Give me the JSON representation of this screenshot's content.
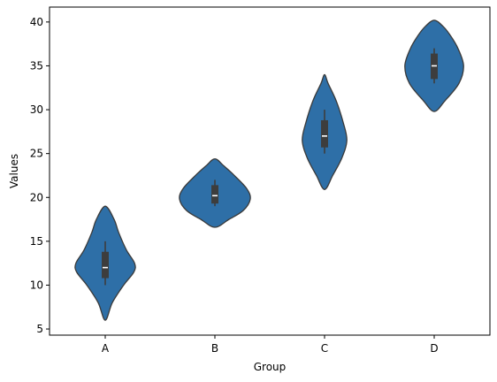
{
  "chart_data": {
    "type": "violin",
    "title": "",
    "xlabel": "Group",
    "ylabel": "Values",
    "categories": [
      "A",
      "B",
      "C",
      "D"
    ],
    "ylim": [
      4.3,
      41.7
    ],
    "yticks": [
      5,
      10,
      15,
      20,
      25,
      30,
      35,
      40
    ],
    "grid": false,
    "color": "#2e6fa7",
    "edge_color": "#3a3a3a",
    "groups": [
      {
        "name": "A",
        "median": 12.0,
        "q1": 10.8,
        "q3": 13.8,
        "whisker_low": 10.0,
        "whisker_high": 15.0,
        "density": [
          {
            "y": 6.0,
            "w": 0.0
          },
          {
            "y": 8.0,
            "w": 0.2
          },
          {
            "y": 10.0,
            "w": 0.52
          },
          {
            "y": 11.5,
            "w": 0.81
          },
          {
            "y": 12.5,
            "w": 0.83
          },
          {
            "y": 14.0,
            "w": 0.6
          },
          {
            "y": 16.0,
            "w": 0.38
          },
          {
            "y": 17.5,
            "w": 0.25
          },
          {
            "y": 19.0,
            "w": 0.0
          }
        ]
      },
      {
        "name": "B",
        "median": 20.2,
        "q1": 19.3,
        "q3": 21.4,
        "whisker_low": 19.0,
        "whisker_high": 22.0,
        "density": [
          {
            "y": 16.6,
            "w": 0.0
          },
          {
            "y": 17.5,
            "w": 0.4
          },
          {
            "y": 18.5,
            "w": 0.8
          },
          {
            "y": 19.8,
            "w": 1.0
          },
          {
            "y": 21.0,
            "w": 0.9
          },
          {
            "y": 22.5,
            "w": 0.55
          },
          {
            "y": 23.6,
            "w": 0.25
          },
          {
            "y": 24.4,
            "w": 0.0
          }
        ]
      },
      {
        "name": "C",
        "median": 27.0,
        "q1": 25.7,
        "q3": 28.8,
        "whisker_low": 25.0,
        "whisker_high": 30.0,
        "density": [
          {
            "y": 20.9,
            "w": 0.0
          },
          {
            "y": 22.5,
            "w": 0.23
          },
          {
            "y": 24.5,
            "w": 0.49
          },
          {
            "y": 26.5,
            "w": 0.63
          },
          {
            "y": 28.5,
            "w": 0.53
          },
          {
            "y": 31.0,
            "w": 0.33
          },
          {
            "y": 33.0,
            "w": 0.1
          },
          {
            "y": 34.0,
            "w": 0.0
          }
        ]
      },
      {
        "name": "D",
        "median": 35.0,
        "q1": 33.5,
        "q3": 36.4,
        "whisker_low": 33.0,
        "whisker_high": 37.0,
        "density": [
          {
            "y": 29.8,
            "w": 0.0
          },
          {
            "y": 31.0,
            "w": 0.3
          },
          {
            "y": 33.0,
            "w": 0.7
          },
          {
            "y": 35.0,
            "w": 0.83
          },
          {
            "y": 37.0,
            "w": 0.67
          },
          {
            "y": 38.5,
            "w": 0.45
          },
          {
            "y": 39.5,
            "w": 0.25
          },
          {
            "y": 40.2,
            "w": 0.0
          }
        ]
      }
    ]
  }
}
